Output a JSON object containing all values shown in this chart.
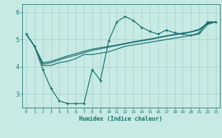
{
  "title": "",
  "xlabel": "Humidex (Indice chaleur)",
  "ylabel": "",
  "xlim": [
    -0.5,
    23.5
  ],
  "ylim": [
    2.5,
    6.3
  ],
  "yticks": [
    3,
    4,
    5,
    6
  ],
  "xticks": [
    0,
    1,
    2,
    3,
    4,
    5,
    6,
    7,
    8,
    9,
    10,
    11,
    12,
    13,
    14,
    15,
    16,
    17,
    18,
    19,
    20,
    21,
    22,
    23
  ],
  "bg_color": "#c8eae4",
  "line_color": "#1a7070",
  "grid_color": "#a0cccc",
  "lines": [
    {
      "x": [
        0,
        1,
        2,
        3,
        4,
        5,
        6,
        7,
        8,
        9,
        10,
        11,
        12,
        13,
        14,
        15,
        16,
        17,
        18,
        19,
        20,
        21,
        22,
        23
      ],
      "y": [
        5.2,
        4.75,
        3.9,
        3.2,
        2.75,
        2.65,
        2.65,
        2.65,
        3.9,
        3.5,
        4.95,
        5.65,
        5.85,
        5.7,
        5.45,
        5.3,
        5.2,
        5.35,
        5.25,
        5.2,
        5.15,
        5.25,
        5.65,
        5.65
      ],
      "marker": true
    },
    {
      "x": [
        0,
        1,
        2,
        3,
        4,
        5,
        6,
        7,
        8,
        9,
        10,
        11,
        12,
        13,
        14,
        15,
        16,
        17,
        18,
        19,
        20,
        21,
        22,
        23
      ],
      "y": [
        5.2,
        4.75,
        4.05,
        4.05,
        4.15,
        4.2,
        4.3,
        4.45,
        4.45,
        4.5,
        4.55,
        4.65,
        4.75,
        4.8,
        4.85,
        4.9,
        4.95,
        5.0,
        5.05,
        5.1,
        5.15,
        5.2,
        5.55,
        5.65
      ],
      "marker": false
    },
    {
      "x": [
        0,
        1,
        2,
        3,
        4,
        5,
        6,
        7,
        8,
        9,
        10,
        11,
        12,
        13,
        14,
        15,
        16,
        17,
        18,
        19,
        20,
        21,
        22,
        23
      ],
      "y": [
        5.2,
        4.75,
        4.1,
        4.15,
        4.25,
        4.35,
        4.42,
        4.52,
        4.6,
        4.66,
        4.72,
        4.78,
        4.84,
        4.9,
        4.95,
        5.0,
        5.06,
        5.12,
        5.17,
        5.22,
        5.27,
        5.35,
        5.58,
        5.65
      ],
      "marker": false
    },
    {
      "x": [
        0,
        1,
        2,
        3,
        4,
        5,
        6,
        7,
        8,
        9,
        10,
        11,
        12,
        13,
        14,
        15,
        16,
        17,
        18,
        19,
        20,
        21,
        22,
        23
      ],
      "y": [
        5.2,
        4.75,
        4.15,
        4.2,
        4.3,
        4.4,
        4.48,
        4.57,
        4.65,
        4.7,
        4.75,
        4.8,
        4.86,
        4.92,
        4.97,
        5.02,
        5.08,
        5.14,
        5.19,
        5.24,
        5.29,
        5.38,
        5.6,
        5.65
      ],
      "marker": false
    }
  ]
}
